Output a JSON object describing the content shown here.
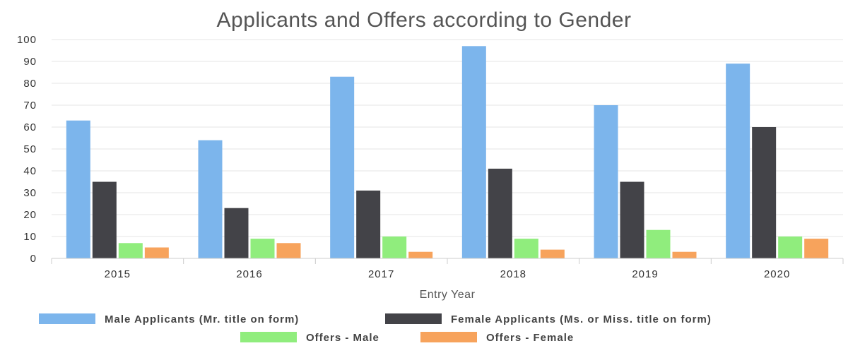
{
  "chart_data": {
    "type": "bar",
    "title": "Applicants and Offers according to Gender",
    "xlabel": "Entry Year",
    "ylabel": "",
    "categories": [
      "2015",
      "2016",
      "2017",
      "2018",
      "2019",
      "2020"
    ],
    "ylim": [
      0,
      100
    ],
    "yticks": [
      "0",
      "10",
      "20",
      "30",
      "40",
      "50",
      "60",
      "70",
      "80",
      "90",
      "100"
    ],
    "grid": true,
    "legend_position": "bottom",
    "series": [
      {
        "name": "Male Applicants (Mr. title on form)",
        "color": "#7cb5ec",
        "values": [
          63,
          54,
          83,
          97,
          70,
          89
        ]
      },
      {
        "name": "Female Applicants (Ms. or Miss. title on form)",
        "color": "#434348",
        "values": [
          35,
          23,
          31,
          41,
          35,
          60
        ]
      },
      {
        "name": "Offers - Male",
        "color": "#90ed7d",
        "values": [
          7,
          9,
          10,
          9,
          13,
          10
        ]
      },
      {
        "name": "Offers - Female",
        "color": "#f7a35c",
        "values": [
          5,
          7,
          3,
          4,
          3,
          9
        ]
      }
    ]
  }
}
